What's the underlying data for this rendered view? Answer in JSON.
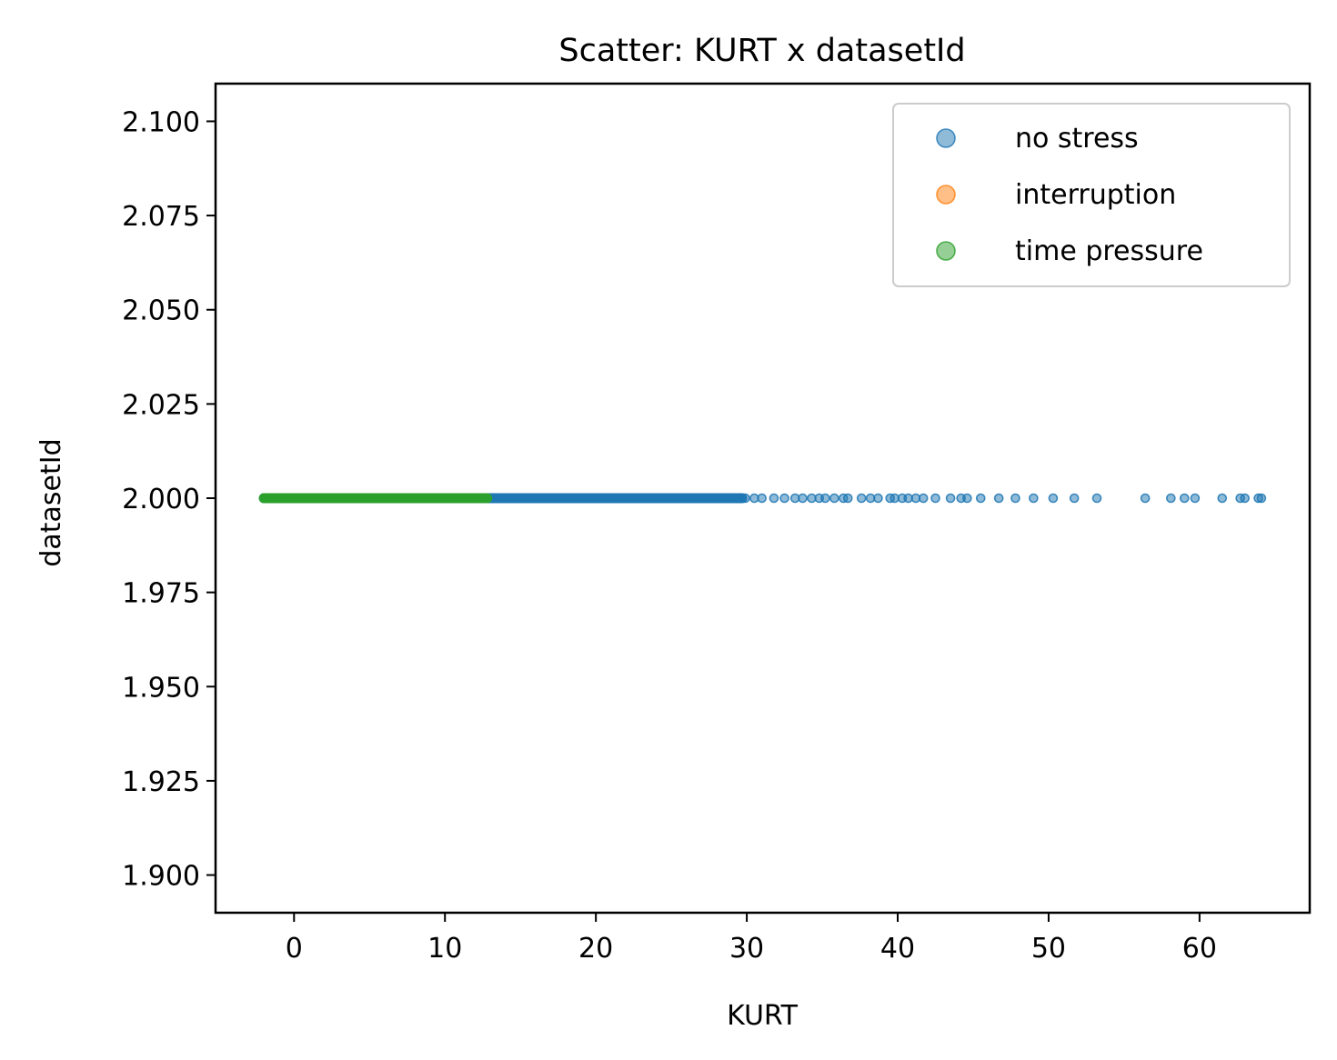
{
  "chart_data": {
    "type": "scatter",
    "title": "Scatter: KURT x datasetId",
    "xlabel": "KURT",
    "ylabel": "datasetId",
    "xlim": [
      -5.2,
      67.3
    ],
    "ylim": [
      1.89,
      2.11
    ],
    "xticks": [
      0,
      10,
      20,
      30,
      40,
      50,
      60
    ],
    "xtick_labels": [
      "0",
      "10",
      "20",
      "30",
      "40",
      "50",
      "60"
    ],
    "yticks": [
      1.9,
      1.925,
      1.95,
      1.975,
      2.0,
      2.025,
      2.05,
      2.075,
      2.1
    ],
    "ytick_labels": [
      "1.900",
      "1.925",
      "1.950",
      "1.975",
      "2.000",
      "2.025",
      "2.050",
      "2.075",
      "2.100"
    ],
    "grid": false,
    "legend_position": "top-right",
    "series": [
      {
        "name": "no stress",
        "color": "#1f77b4",
        "alpha": 0.5,
        "dense_range": [
          -2,
          29.7
        ],
        "y_const": 2.0,
        "x": [
          29.9,
          30.5,
          31.0,
          31.8,
          32.5,
          33.2,
          33.7,
          34.3,
          34.8,
          35.2,
          35.8,
          36.4,
          36.7,
          37.6,
          38.2,
          38.7,
          39.5,
          39.8,
          40.3,
          40.7,
          41.2,
          41.7,
          42.5,
          43.5,
          44.2,
          44.6,
          45.5,
          46.7,
          47.8,
          49.0,
          50.3,
          51.7,
          53.2,
          56.4,
          58.1,
          59.0,
          59.7,
          61.5,
          62.7,
          63.0,
          63.9,
          64.1
        ],
        "y": [
          2.0,
          2.0,
          2.0,
          2.0,
          2.0,
          2.0,
          2.0,
          2.0,
          2.0,
          2.0,
          2.0,
          2.0,
          2.0,
          2.0,
          2.0,
          2.0,
          2.0,
          2.0,
          2.0,
          2.0,
          2.0,
          2.0,
          2.0,
          2.0,
          2.0,
          2.0,
          2.0,
          2.0,
          2.0,
          2.0,
          2.0,
          2.0,
          2.0,
          2.0,
          2.0,
          2.0,
          2.0,
          2.0,
          2.0,
          2.0,
          2.0,
          2.0
        ]
      },
      {
        "name": "interruption",
        "color": "#ff7f0e",
        "alpha": 0.5,
        "x": [],
        "y": []
      },
      {
        "name": "time pressure",
        "color": "#2ca02c",
        "alpha": 0.5,
        "dense_range": [
          -2,
          12.8
        ],
        "y_const": 2.0,
        "x": [],
        "y": []
      }
    ]
  }
}
